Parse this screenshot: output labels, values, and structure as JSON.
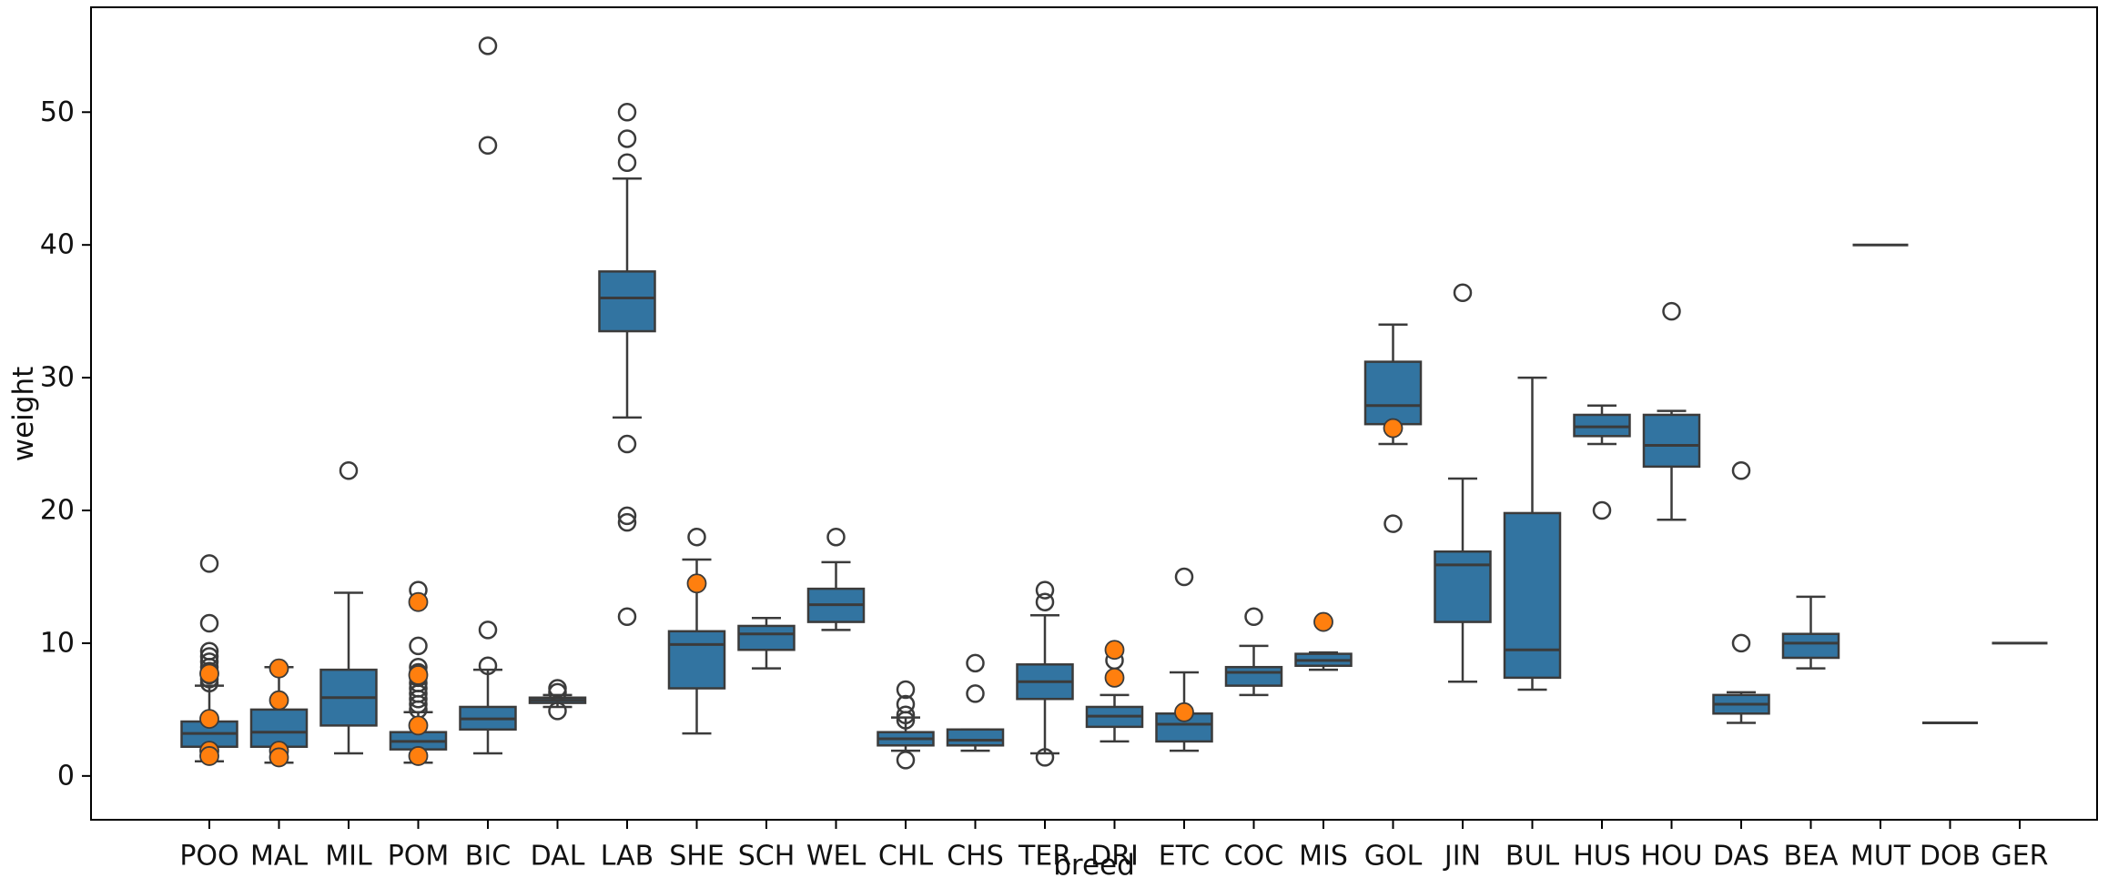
{
  "chart_data": {
    "type": "box",
    "title": "",
    "xlabel": "breed",
    "ylabel": "weight",
    "legend": "none",
    "grid": false,
    "yticks": [
      0,
      10,
      20,
      30,
      40,
      50
    ],
    "ylim": [
      -3.3,
      57.9
    ],
    "categories": [
      "POO",
      "MAL",
      "MIL",
      "POM",
      "BIC",
      "DAL",
      "LAB",
      "SHE",
      "SCH",
      "WEL",
      "CHL",
      "CHS",
      "TER",
      "DRI",
      "ETC",
      "COC",
      "MIS",
      "GOL",
      "JIN",
      "BUL",
      "HUS",
      "HOU",
      "DAS",
      "BEA",
      "MUT",
      "DOB",
      "GER"
    ],
    "colors": {
      "box_fill": "#3274a1",
      "box_edge": "#3b3b3b",
      "whisker": "#3b3b3b",
      "outlier_edge": "#3b3b3b",
      "orange_point": "#ff7f0e",
      "spine": "#000000",
      "text": "#111111"
    },
    "boxes": [
      {
        "breed": "POO",
        "whislo": 1.1,
        "q1": 2.2,
        "med": 3.2,
        "q3": 4.1,
        "whishi": 6.8,
        "outliers": [
          16,
          11.5,
          9.4,
          9.0,
          8.6,
          8.2,
          7.9,
          7.6,
          7.3,
          7.0
        ],
        "orange": [
          7.7,
          4.3,
          1.9,
          1.5
        ]
      },
      {
        "breed": "MAL",
        "whislo": 1.0,
        "q1": 2.2,
        "med": 3.3,
        "q3": 5.0,
        "whishi": 8.2,
        "outliers": [],
        "orange": [
          8.1,
          5.7,
          1.9,
          1.4
        ]
      },
      {
        "breed": "MIL",
        "whislo": 1.7,
        "q1": 3.8,
        "med": 5.9,
        "q3": 8.0,
        "whishi": 13.8,
        "outliers": [
          23
        ],
        "orange": []
      },
      {
        "breed": "POM",
        "whislo": 1.0,
        "q1": 2.0,
        "med": 2.6,
        "q3": 3.3,
        "whishi": 4.8,
        "outliers": [
          14,
          9.8,
          8.2,
          7.8,
          7.4,
          7.0,
          6.6,
          6.2,
          5.8,
          5.4,
          5.0
        ],
        "orange": [
          13.1,
          7.6,
          3.8,
          1.5
        ]
      },
      {
        "breed": "BIC",
        "whislo": 1.7,
        "q1": 3.5,
        "med": 4.3,
        "q3": 5.2,
        "whishi": 8.0,
        "outliers": [
          55,
          47.5,
          11,
          8.3
        ],
        "orange": []
      },
      {
        "breed": "DAL",
        "whislo": 5.2,
        "q1": 5.5,
        "med": 5.7,
        "q3": 5.9,
        "whishi": 6.1,
        "outliers": [
          6.6,
          6.3,
          4.9
        ],
        "orange": []
      },
      {
        "breed": "LAB",
        "whislo": 27,
        "q1": 33.5,
        "med": 36,
        "q3": 38,
        "whishi": 45,
        "outliers": [
          50,
          48,
          46.2,
          25,
          19.6,
          19.1,
          12
        ],
        "orange": []
      },
      {
        "breed": "SHE",
        "whislo": 3.2,
        "q1": 6.6,
        "med": 9.9,
        "q3": 10.9,
        "whishi": 16.3,
        "outliers": [
          18
        ],
        "orange": [
          14.5
        ]
      },
      {
        "breed": "SCH",
        "whislo": 8.1,
        "q1": 9.5,
        "med": 10.7,
        "q3": 11.3,
        "whishi": 11.9,
        "outliers": [],
        "orange": []
      },
      {
        "breed": "WEL",
        "whislo": 11.0,
        "q1": 11.6,
        "med": 12.9,
        "q3": 14.1,
        "whishi": 16.1,
        "outliers": [
          18
        ],
        "orange": []
      },
      {
        "breed": "CHL",
        "whislo": 1.9,
        "q1": 2.3,
        "med": 2.8,
        "q3": 3.3,
        "whishi": 4.4,
        "outliers": [
          6.5,
          5.4,
          4.6,
          4.2,
          1.2
        ],
        "orange": []
      },
      {
        "breed": "CHS",
        "whislo": 1.9,
        "q1": 2.3,
        "med": 2.7,
        "q3": 3.5,
        "whishi": 3.5,
        "outliers": [
          8.5,
          6.2
        ],
        "orange": []
      },
      {
        "breed": "TER",
        "whislo": 1.7,
        "q1": 5.8,
        "med": 7.1,
        "q3": 8.4,
        "whishi": 12.1,
        "outliers": [
          14,
          13.1,
          1.4
        ],
        "orange": []
      },
      {
        "breed": "DRI",
        "whislo": 2.6,
        "q1": 3.7,
        "med": 4.5,
        "q3": 5.2,
        "whishi": 6.1,
        "outliers": [
          8.7
        ],
        "orange": [
          9.5,
          7.4
        ]
      },
      {
        "breed": "ETC",
        "whislo": 1.9,
        "q1": 2.6,
        "med": 3.9,
        "q3": 4.7,
        "whishi": 7.8,
        "outliers": [
          15
        ],
        "orange": [
          4.8
        ]
      },
      {
        "breed": "COC",
        "whislo": 6.1,
        "q1": 6.8,
        "med": 7.8,
        "q3": 8.2,
        "whishi": 9.8,
        "outliers": [
          12
        ],
        "orange": []
      },
      {
        "breed": "MIS",
        "whislo": 8.0,
        "q1": 8.3,
        "med": 8.7,
        "q3": 9.2,
        "whishi": 9.3,
        "outliers": [],
        "orange": [
          11.6
        ]
      },
      {
        "breed": "GOL",
        "whislo": 25,
        "q1": 26.5,
        "med": 27.9,
        "q3": 31.2,
        "whishi": 34,
        "outliers": [
          19
        ],
        "orange": [
          26.2
        ]
      },
      {
        "breed": "JIN",
        "whislo": 7.1,
        "q1": 11.6,
        "med": 15.9,
        "q3": 16.9,
        "whishi": 22.4,
        "outliers": [
          36.4
        ],
        "orange": []
      },
      {
        "breed": "BUL",
        "whislo": 6.5,
        "q1": 7.4,
        "med": 9.5,
        "q3": 19.8,
        "whishi": 30,
        "outliers": [],
        "orange": []
      },
      {
        "breed": "HUS",
        "whislo": 25.0,
        "q1": 25.6,
        "med": 26.3,
        "q3": 27.2,
        "whishi": 27.9,
        "outliers": [
          20
        ],
        "orange": []
      },
      {
        "breed": "HOU",
        "whislo": 19.3,
        "q1": 23.3,
        "med": 24.9,
        "q3": 27.2,
        "whishi": 27.5,
        "outliers": [
          35
        ],
        "orange": []
      },
      {
        "breed": "DAS",
        "whislo": 4.0,
        "q1": 4.7,
        "med": 5.4,
        "q3": 6.1,
        "whishi": 6.3,
        "outliers": [
          23,
          10
        ],
        "orange": []
      },
      {
        "breed": "BEA",
        "whislo": 8.1,
        "q1": 8.9,
        "med": 10.0,
        "q3": 10.7,
        "whishi": 13.5,
        "outliers": [],
        "orange": []
      },
      {
        "breed": "MUT",
        "whislo": 40,
        "q1": 40,
        "med": 40,
        "q3": 40,
        "whishi": 40,
        "outliers": [],
        "orange": []
      },
      {
        "breed": "DOB",
        "whislo": 4,
        "q1": 4,
        "med": 4,
        "q3": 4,
        "whishi": 4,
        "outliers": [],
        "orange": []
      },
      {
        "breed": "GER",
        "whislo": 10,
        "q1": 10,
        "med": 10,
        "q3": 10,
        "whishi": 10,
        "outliers": [],
        "orange": []
      }
    ]
  }
}
